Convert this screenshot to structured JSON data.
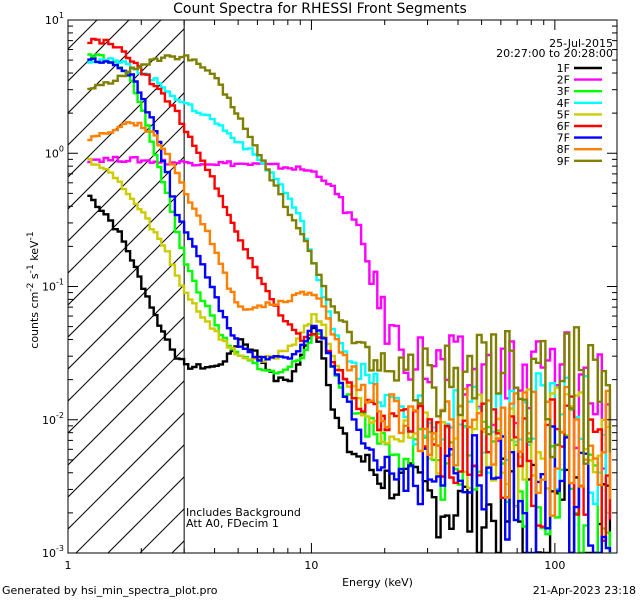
{
  "chart_data": {
    "type": "line",
    "title": "Count Spectra for RHESSI Front Segments",
    "xlabel": "Energy (keV)",
    "ylabel": "counts cm^-2 s^-1 keV^-1",
    "xscale": "log",
    "yscale": "log",
    "xlim": [
      1,
      180
    ],
    "ylim": [
      0.001,
      10
    ],
    "x_tick_labels": [
      "1",
      "10",
      "100"
    ],
    "y_tick_labels": [
      "10^-3",
      "10^-2",
      "10^-1",
      "10^0",
      "10^1"
    ],
    "date": "25-Jul-2015",
    "time_range": "20:27:00 to 20:28:00",
    "notes": [
      "Includes Background",
      "Att A0, FDecim 1"
    ],
    "hatched_region_xmax": 3.0,
    "x": [
      1.2,
      1.4,
      1.6,
      1.8,
      2.0,
      2.25,
      2.5,
      2.75,
      3.0,
      3.5,
      4.0,
      4.5,
      5.0,
      6.0,
      7.0,
      8.0,
      9.0,
      10.0,
      11.0,
      12.0,
      14.0,
      16.0,
      18.0,
      20.0,
      25.0,
      30.0,
      40.0,
      50.0,
      60.0,
      80.0,
      100.0,
      120.0,
      150.0,
      175.0
    ],
    "series": [
      {
        "name": "1F",
        "color": "#000000",
        "values": [
          0.48,
          0.35,
          0.25,
          0.16,
          0.1,
          0.06,
          0.04,
          0.03,
          0.025,
          0.025,
          0.025,
          0.03,
          0.04,
          0.03,
          0.02,
          0.02,
          0.03,
          0.05,
          0.03,
          0.012,
          0.006,
          0.005,
          0.004,
          0.0035,
          0.003,
          0.0025,
          0.0022,
          0.002,
          0.0019,
          0.0018,
          0.0017,
          0.0016,
          0.0015,
          0.0012
        ]
      },
      {
        "name": "2F",
        "color": "#ff00ff",
        "values": [
          0.9,
          0.9,
          0.9,
          0.9,
          0.88,
          0.87,
          0.86,
          0.85,
          0.85,
          0.85,
          0.84,
          0.84,
          0.83,
          0.82,
          0.8,
          0.78,
          0.76,
          0.72,
          0.65,
          0.55,
          0.35,
          0.2,
          0.1,
          0.05,
          0.03,
          0.025,
          0.02,
          0.019,
          0.018,
          0.018,
          0.018,
          0.017,
          0.015,
          0.008
        ]
      },
      {
        "name": "3F",
        "color": "#00ff00",
        "values": [
          5.5,
          5.2,
          4.5,
          3.5,
          2.0,
          1.0,
          0.5,
          0.25,
          0.15,
          0.08,
          0.05,
          0.035,
          0.03,
          0.025,
          0.022,
          0.025,
          0.03,
          0.045,
          0.04,
          0.025,
          0.014,
          0.01,
          0.008,
          0.007,
          0.006,
          0.005,
          0.0045,
          0.004,
          0.0035,
          0.003,
          0.003,
          0.0028,
          0.0026,
          0.0022
        ]
      },
      {
        "name": "4F",
        "color": "#00ffff",
        "values": [
          5.0,
          5.0,
          4.8,
          4.5,
          4.0,
          3.5,
          3.0,
          2.6,
          2.3,
          2.0,
          1.7,
          1.4,
          1.2,
          0.9,
          0.65,
          0.45,
          0.3,
          0.15,
          0.08,
          0.05,
          0.03,
          0.022,
          0.017,
          0.013,
          0.01,
          0.009,
          0.008,
          0.008,
          0.008,
          0.008,
          0.008,
          0.0075,
          0.007,
          0.0065
        ]
      },
      {
        "name": "5F",
        "color": "#cccc00",
        "values": [
          0.9,
          0.75,
          0.6,
          0.45,
          0.35,
          0.25,
          0.18,
          0.12,
          0.09,
          0.06,
          0.045,
          0.035,
          0.03,
          0.028,
          0.03,
          0.035,
          0.045,
          0.06,
          0.05,
          0.03,
          0.018,
          0.013,
          0.01,
          0.009,
          0.008,
          0.0075,
          0.007,
          0.0065,
          0.006,
          0.006,
          0.006,
          0.0055,
          0.005,
          0.0045
        ]
      },
      {
        "name": "6F",
        "color": "#ff0000",
        "values": [
          7.0,
          6.8,
          6.0,
          5.0,
          4.0,
          3.2,
          2.5,
          2.0,
          1.5,
          0.9,
          0.55,
          0.35,
          0.22,
          0.12,
          0.07,
          0.05,
          0.04,
          0.045,
          0.04,
          0.028,
          0.018,
          0.013,
          0.01,
          0.009,
          0.008,
          0.007,
          0.0065,
          0.006,
          0.0055,
          0.005,
          0.0048,
          0.0045,
          0.0042,
          0.004
        ]
      },
      {
        "name": "7F",
        "color": "#0000ff",
        "values": [
          5.0,
          5.0,
          4.5,
          3.8,
          2.5,
          1.5,
          0.7,
          0.35,
          0.25,
          0.15,
          0.08,
          0.05,
          0.035,
          0.028,
          0.03,
          0.03,
          0.035,
          0.05,
          0.04,
          0.025,
          0.012,
          0.007,
          0.005,
          0.0045,
          0.004,
          0.0038,
          0.0035,
          0.0033,
          0.003,
          0.0028,
          0.0027,
          0.0026,
          0.0025,
          0.0022
        ]
      },
      {
        "name": "8F",
        "color": "#ff8000",
        "values": [
          1.3,
          1.4,
          1.6,
          1.7,
          1.6,
          1.3,
          1.0,
          0.7,
          0.5,
          0.3,
          0.18,
          0.1,
          0.07,
          0.07,
          0.075,
          0.08,
          0.09,
          0.09,
          0.07,
          0.045,
          0.025,
          0.018,
          0.014,
          0.012,
          0.01,
          0.009,
          0.008,
          0.0075,
          0.007,
          0.0068,
          0.0065,
          0.006,
          0.0058,
          0.0055
        ]
      },
      {
        "name": "9F",
        "color": "#808000",
        "values": [
          3.0,
          3.3,
          3.8,
          4.2,
          4.6,
          5.0,
          5.2,
          5.3,
          5.2,
          4.5,
          3.5,
          2.5,
          1.8,
          1.0,
          0.55,
          0.35,
          0.25,
          0.15,
          0.1,
          0.07,
          0.045,
          0.035,
          0.028,
          0.025,
          0.022,
          0.02,
          0.02,
          0.019,
          0.018,
          0.017,
          0.016,
          0.015,
          0.013,
          0.012
        ]
      }
    ]
  },
  "footer": {
    "left": "Generated by hsi_min_spectra_plot.pro",
    "right": "21-Apr-2023 23:18"
  }
}
